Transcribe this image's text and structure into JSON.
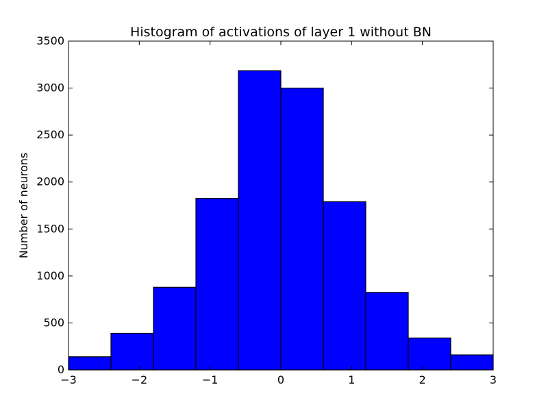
{
  "chart_data": {
    "type": "bar",
    "title": "Histogram of activations of layer 1  without BN",
    "xlabel": "",
    "ylabel": "Number of neurons",
    "xlim": [
      -3,
      3
    ],
    "ylim": [
      0,
      3500
    ],
    "bin_edges": [
      -3,
      -2.4,
      -1.8,
      -1.2,
      -0.6,
      0,
      0.6,
      1.2,
      1.8,
      2.4,
      3
    ],
    "values": [
      140,
      390,
      880,
      1825,
      3185,
      3000,
      1790,
      825,
      340,
      160
    ],
    "x_ticks": [
      -3,
      -2,
      -1,
      0,
      1,
      2,
      3
    ],
    "x_tick_labels": [
      "−3",
      "−2",
      "−1",
      "0",
      "1",
      "2",
      "3"
    ],
    "y_ticks": [
      0,
      500,
      1000,
      1500,
      2000,
      2500,
      3000,
      3500
    ],
    "y_tick_labels": [
      "0",
      "500",
      "1000",
      "1500",
      "2000",
      "2500",
      "3000",
      "3500"
    ],
    "bar_color": "#0000ff",
    "edge_color": "#000000",
    "grid": false,
    "legend": "none"
  }
}
